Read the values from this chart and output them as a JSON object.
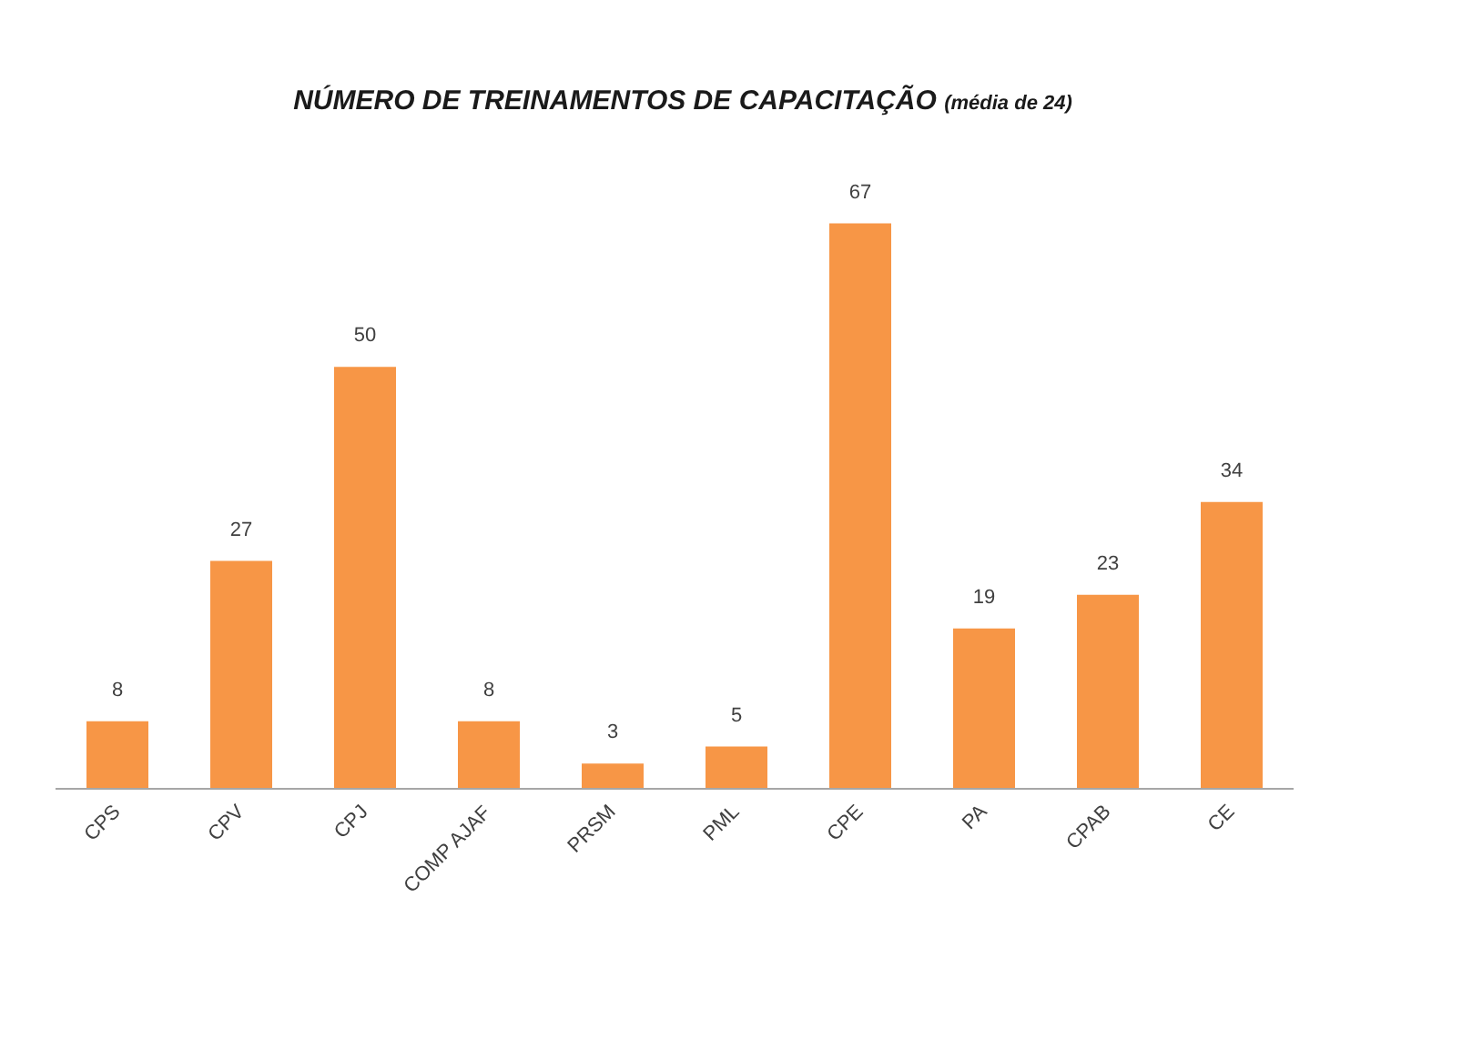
{
  "chart_data": {
    "type": "bar",
    "title": "NÚMERO DE TREINAMENTOS DE CAPACITAÇÃO",
    "subtitle": "(média de 24)",
    "categories": [
      "CPS",
      "CPV",
      "CPJ",
      "COMP AJAF",
      "PRSM",
      "PML",
      "CPE",
      "PA",
      "CPAB",
      "CE"
    ],
    "values": [
      8,
      27,
      50,
      8,
      3,
      5,
      67,
      19,
      23,
      34
    ],
    "color": "#f79646",
    "data_labels": true,
    "grid": false
  }
}
